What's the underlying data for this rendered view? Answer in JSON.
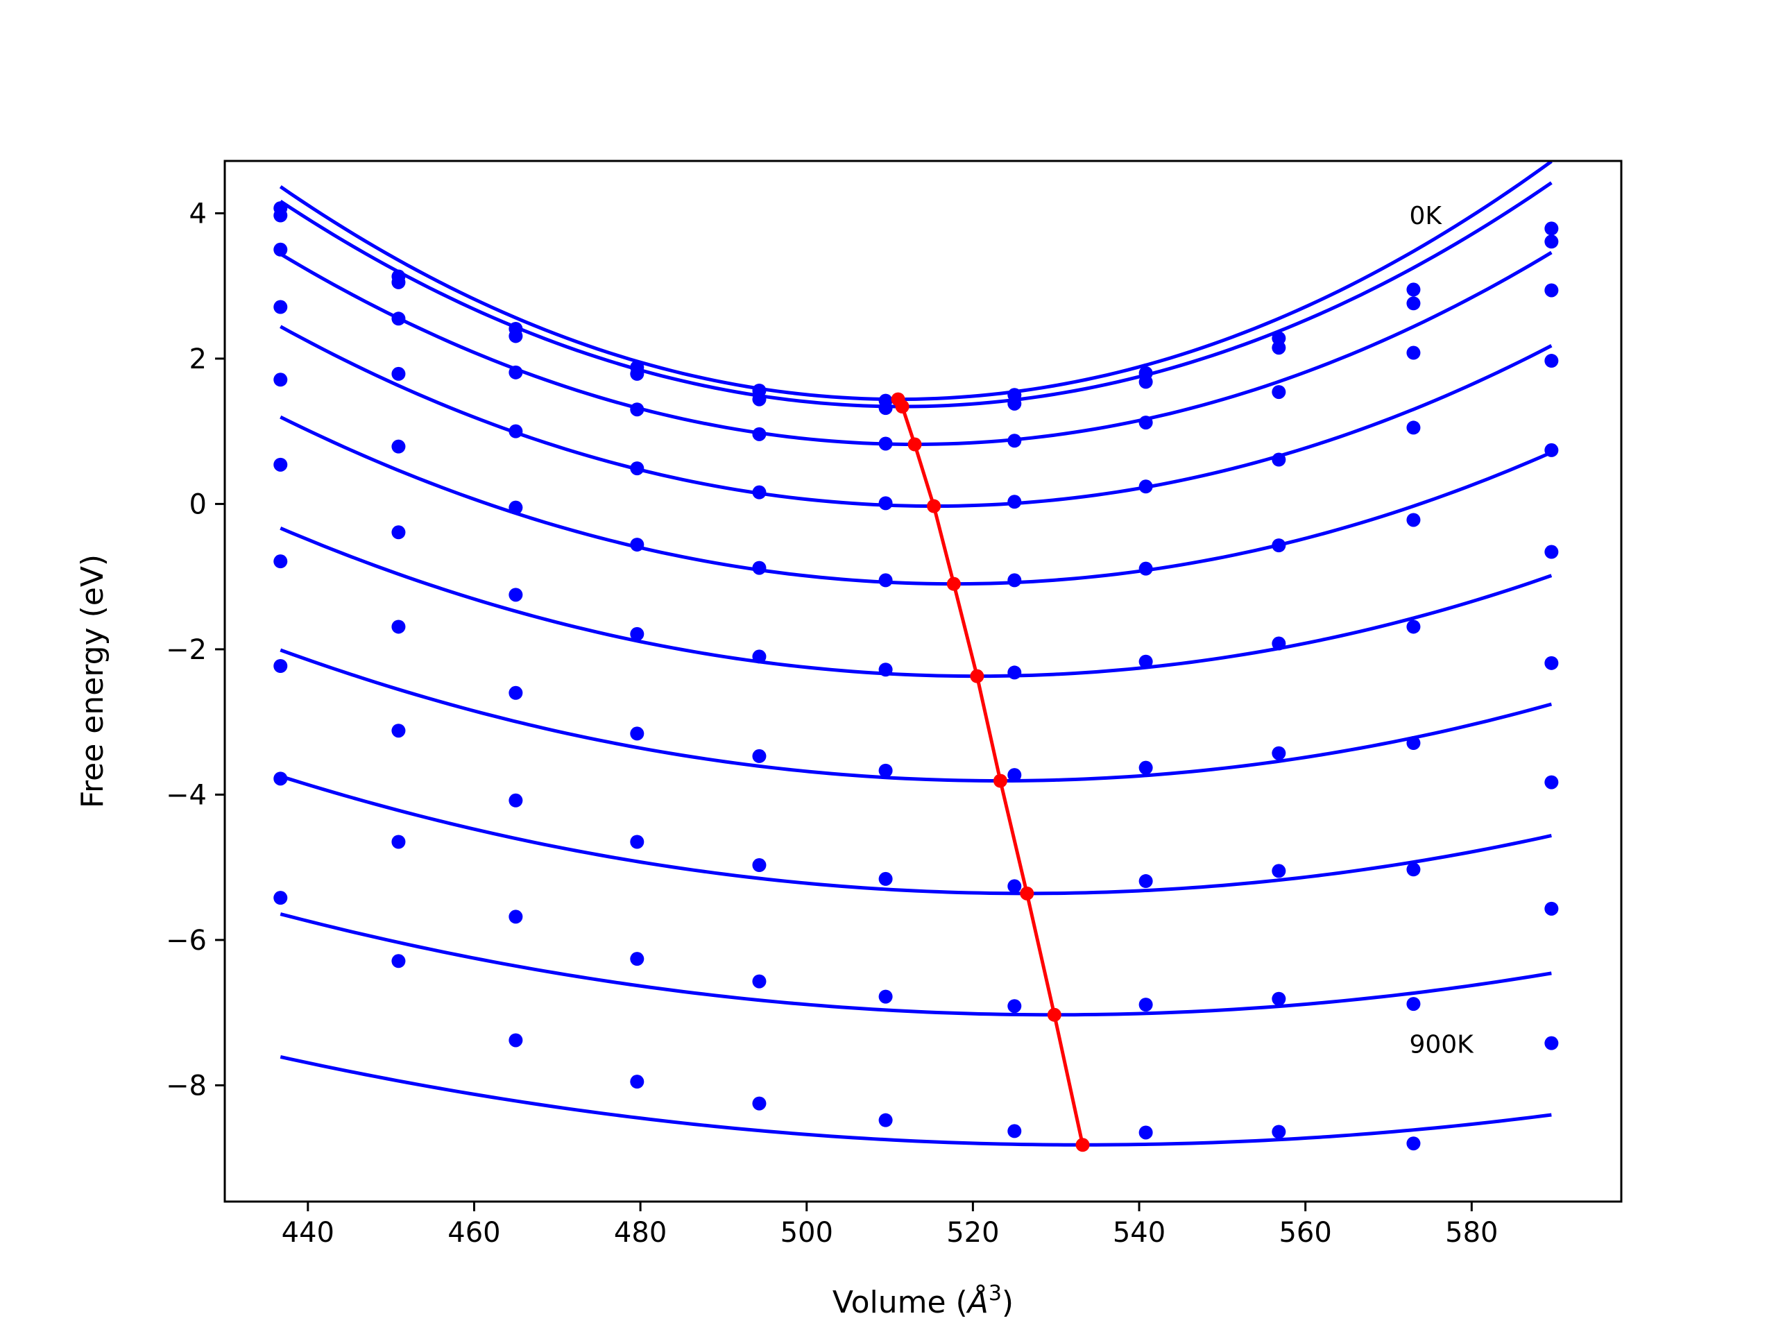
{
  "chart_data": {
    "type": "line",
    "title": "",
    "xlabel": "Volume (",
    "xlabel_symbol": "Å",
    "xlabel_sup": "3",
    "xlabel_end": ")",
    "ylabel": "Free energy (eV)",
    "xlim": [
      430,
      598
    ],
    "ylim": [
      -9.6,
      4.72
    ],
    "xticks": [
      440,
      460,
      480,
      500,
      520,
      540,
      560,
      580
    ],
    "yticks": [
      4,
      2,
      0,
      -2,
      -4,
      -6,
      -8
    ],
    "ytick_labels": [
      "4",
      "2",
      "0",
      "−2",
      "−4",
      "−6",
      "−8"
    ],
    "grid": false,
    "legend": "none",
    "colors": {
      "data": "#0000ff",
      "equilibrium": "#ff0000"
    },
    "annotations": [
      {
        "text": "0K",
        "x": 572.5,
        "y": 3.85
      },
      {
        "text": "900K",
        "x": 572.5,
        "y": -7.55
      }
    ],
    "x": [
      436.7,
      450.9,
      465.0,
      479.6,
      494.3,
      509.5,
      525.0,
      540.8,
      556.8,
      573.0,
      589.6
    ],
    "series": [
      {
        "points": [
          4.07,
          3.13,
          2.41,
          1.88,
          1.56,
          1.42,
          1.5,
          1.8,
          2.28,
          2.95,
          3.79
        ],
        "curve": {
          "vmin": 511.0,
          "fmin": 1.44,
          "a": 0.00053,
          "b": 0.0
        }
      },
      {
        "points": [
          3.97,
          3.05,
          2.31,
          1.79,
          1.44,
          1.32,
          1.38,
          1.68,
          2.15,
          2.76,
          3.61
        ],
        "curve": {
          "vmin": 511.5,
          "fmin": 1.34,
          "a": 0.000505,
          "b": 0.0
        }
      },
      {
        "points": [
          3.5,
          2.55,
          1.81,
          1.3,
          0.96,
          0.83,
          0.87,
          1.12,
          1.54,
          2.08,
          2.94
        ],
        "curve": {
          "vmin": 513.0,
          "fmin": 0.82,
          "a": 0.00045,
          "b": 0.0
        }
      },
      {
        "points": [
          2.71,
          1.79,
          1.0,
          0.49,
          0.16,
          0.01,
          0.03,
          0.24,
          0.61,
          1.05,
          1.97
        ],
        "curve": {
          "vmin": 515.3,
          "fmin": -0.03,
          "a": 0.0004,
          "b": 0.0
        }
      },
      {
        "points": [
          1.71,
          0.79,
          -0.05,
          -0.56,
          -0.88,
          -1.05,
          -1.05,
          -0.89,
          -0.57,
          -0.22,
          0.74
        ],
        "curve": {
          "vmin": 517.7,
          "fmin": -1.1,
          "a": 0.00035,
          "b": 0.0
        }
      },
      {
        "points": [
          0.54,
          -0.39,
          -1.25,
          -1.79,
          -2.1,
          -2.28,
          -2.32,
          -2.17,
          -1.92,
          -1.69,
          -0.66
        ],
        "curve": {
          "vmin": 520.5,
          "fmin": -2.37,
          "a": 0.00029,
          "b": 0.0
        }
      },
      {
        "points": [
          -0.79,
          -1.69,
          -2.6,
          -3.16,
          -3.47,
          -3.67,
          -3.73,
          -3.63,
          -3.43,
          -3.29,
          -2.19
        ],
        "curve": {
          "vmin": 523.3,
          "fmin": -3.81,
          "a": 0.00024,
          "b": 0.0
        }
      },
      {
        "points": [
          -2.23,
          -3.12,
          -4.08,
          -4.65,
          -4.97,
          -5.16,
          -5.26,
          -5.19,
          -5.05,
          -5.03,
          -3.83
        ],
        "curve": {
          "vmin": 526.5,
          "fmin": -5.36,
          "a": 0.0002,
          "b": 0.0
        }
      },
      {
        "points": [
          -3.78,
          -4.65,
          -5.68,
          -6.26,
          -6.57,
          -6.78,
          -6.91,
          -6.89,
          -6.81,
          -6.88,
          -5.57
        ],
        "curve": {
          "vmin": 529.8,
          "fmin": -7.03,
          "a": 0.00016,
          "b": 0.0
        }
      },
      {
        "points": [
          -5.42,
          -6.29,
          -7.38,
          -7.95,
          -8.25,
          -8.48,
          -8.63,
          -8.65,
          -8.64,
          -8.8,
          -7.42
        ],
        "curve": {
          "vmin": 533.2,
          "fmin": -8.82,
          "a": 0.00013,
          "b": 0.0
        }
      }
    ],
    "equilibrium": {
      "x": [
        511.0,
        511.5,
        513.0,
        515.3,
        517.7,
        520.5,
        523.3,
        526.5,
        529.8,
        533.2
      ],
      "y": [
        1.44,
        1.34,
        0.82,
        -0.03,
        -1.1,
        -2.37,
        -3.81,
        -5.36,
        -7.03,
        -8.82
      ]
    }
  }
}
